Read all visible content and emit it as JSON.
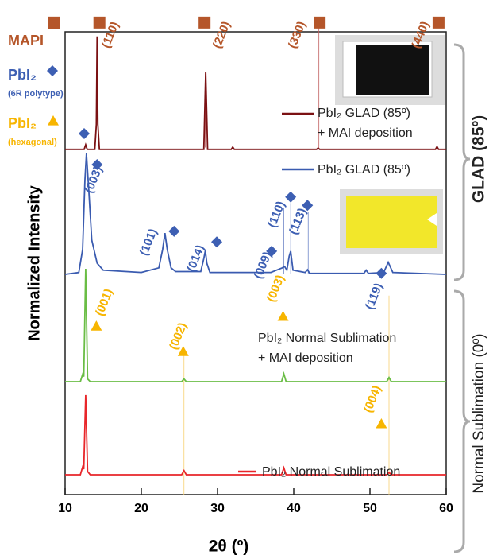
{
  "chart_data": {
    "type": "line",
    "x_label": "2θ (º)",
    "y_label": "Normalized Intensity",
    "xlim": [
      10,
      60
    ],
    "xticks": [
      10,
      20,
      30,
      40,
      50,
      60
    ],
    "ylim": [
      0,
      100
    ],
    "series": [
      {
        "name": "PbI₂ GLAD (85º)\n+ MAI deposition",
        "color": "#7b1113",
        "x": [
          10,
          12.5,
          12.7,
          12.9,
          13.9,
          14.1,
          14.2,
          14.3,
          14.5,
          28.2,
          28.45,
          28.7,
          31.8,
          32,
          32.2,
          43.0,
          43.2,
          43.4,
          58.6,
          58.8,
          59,
          60
        ],
        "values": [
          74.6,
          74.6,
          75.6,
          74.6,
          74.6,
          80,
          99,
          80,
          74.6,
          74.6,
          91.4,
          74.6,
          74.6,
          75.1,
          74.6,
          74.6,
          74.9,
          74.6,
          74.6,
          75.2,
          74.6,
          74.6
        ]
      },
      {
        "name": "PbI₂ GLAD (85º)",
        "color": "#3a5bb0",
        "x": [
          10,
          11.8,
          12.3,
          12.6,
          12.8,
          13.1,
          13.5,
          14.2,
          15,
          20,
          22.3,
          22.8,
          23.1,
          23.4,
          23.9,
          24.5,
          27.8,
          28.2,
          28.4,
          28.6,
          29,
          37,
          38.5,
          38.8,
          39.1,
          39.4,
          39.6,
          39.9,
          41.5,
          41.8,
          42.1,
          49.2,
          49.5,
          49.8,
          51.8,
          52.4,
          53,
          60
        ],
        "values": [
          47.6,
          48,
          53,
          68,
          73.7,
          66,
          55,
          50,
          48.5,
          48,
          49,
          53,
          56.5,
          53,
          49,
          48.2,
          48.2,
          51,
          52.7,
          50,
          48,
          48,
          49,
          49.3,
          48.5,
          51.5,
          52.6,
          48.5,
          48,
          48.6,
          47.8,
          47.8,
          48.5,
          47.8,
          48,
          50.2,
          48,
          47.6
        ]
      },
      {
        "name": "PbI₂ Normal Sublimation\n+ MAI deposition",
        "color": "#6abd45",
        "x": [
          10,
          12.0,
          12.3,
          12.45,
          12.7,
          12.95,
          13.3,
          25.3,
          25.6,
          25.9,
          38.4,
          38.7,
          39.0,
          52.2,
          52.5,
          52.8,
          60
        ],
        "values": [
          24.4,
          24.4,
          26,
          25.5,
          48.8,
          25,
          24.4,
          24.4,
          25,
          24.4,
          24.4,
          26.1,
          24.4,
          24.4,
          25.3,
          24.4,
          24.4
        ]
      },
      {
        "name": "PbI₂ Normal Sublimation",
        "color": "#e8262a",
        "x": [
          10,
          12.0,
          12.3,
          12.45,
          12.7,
          12.95,
          13.3,
          25.3,
          25.6,
          25.9,
          38.4,
          38.7,
          39.0,
          52.2,
          52.5,
          52.8,
          60
        ],
        "values": [
          4.3,
          4.3,
          6,
          5.5,
          21.5,
          5,
          4.3,
          4.3,
          5.2,
          4.3,
          4.3,
          5.8,
          4.3,
          4.3,
          4.8,
          4.3,
          4.3
        ]
      }
    ],
    "reference_lines": [
      {
        "x": 28.4,
        "from": 75,
        "to": 91,
        "color": "#c06060"
      },
      {
        "x": 43.3,
        "from": 75,
        "to": 101,
        "color": "#c06060"
      },
      {
        "x": 38.7,
        "from": 47.6,
        "to": 62,
        "color": "#6f87c8"
      },
      {
        "x": 39.6,
        "from": 47.6,
        "to": 63,
        "color": "#6f87c8"
      },
      {
        "x": 41.9,
        "from": 47.6,
        "to": 61,
        "color": "#6f87c8"
      },
      {
        "x": 25.6,
        "from": 0,
        "to": 30,
        "color": "#f7d070"
      },
      {
        "x": 38.6,
        "from": 0,
        "to": 38,
        "color": "#f7d070"
      },
      {
        "x": 52.5,
        "from": 0,
        "to": 43,
        "color": "#f7d070"
      }
    ],
    "markers": [
      {
        "shape": "square",
        "x": 8.5,
        "y": 102,
        "color": "#b5562a"
      },
      {
        "shape": "square",
        "x": 14.5,
        "y": 102,
        "color": "#b5562a"
      },
      {
        "shape": "square",
        "x": 28.3,
        "y": 102,
        "color": "#b5562a"
      },
      {
        "shape": "square",
        "x": 43.4,
        "y": 102,
        "color": "#b5562a"
      },
      {
        "shape": "square",
        "x": 59.0,
        "y": 102,
        "color": "#b5562a"
      },
      {
        "shape": "diamond",
        "x": 12.5,
        "y": 78,
        "color": "#3d5fb3"
      },
      {
        "shape": "diamond",
        "x": 14.2,
        "y": 71.3,
        "color": "#3d5fb3"
      },
      {
        "shape": "diamond",
        "x": 24.3,
        "y": 56.9,
        "color": "#3d5fb3"
      },
      {
        "shape": "diamond",
        "x": 29.9,
        "y": 54.6,
        "color": "#3d5fb3"
      },
      {
        "shape": "diamond",
        "x": 37.1,
        "y": 52.6,
        "color": "#3d5fb3"
      },
      {
        "shape": "diamond",
        "x": 39.6,
        "y": 64.3,
        "color": "#3d5fb3"
      },
      {
        "shape": "diamond",
        "x": 41.8,
        "y": 62.5,
        "color": "#3d5fb3"
      },
      {
        "shape": "diamond",
        "x": 51.5,
        "y": 47.8,
        "color": "#3d5fb3"
      },
      {
        "shape": "triangle",
        "x": 14.1,
        "y": 36.4,
        "color": "#f7b500"
      },
      {
        "shape": "triangle",
        "x": 25.5,
        "y": 30.9,
        "color": "#f7b500"
      },
      {
        "shape": "triangle",
        "x": 38.6,
        "y": 38.5,
        "color": "#f7b500"
      },
      {
        "shape": "triangle",
        "x": 51.5,
        "y": 15.3,
        "color": "#f7b500"
      }
    ],
    "labels": [
      {
        "text": "(110)",
        "x": 16,
        "y": 99.3,
        "color": "#b5562a"
      },
      {
        "text": "(220)",
        "x": 30.6,
        "y": 99.3,
        "color": "#b5562a"
      },
      {
        "text": "(330)",
        "x": 40.5,
        "y": 99.3,
        "color": "#b5562a"
      },
      {
        "text": "(440)",
        "x": 56.7,
        "y": 99.3,
        "color": "#b5562a"
      },
      {
        "text": "(003)",
        "x": 13.8,
        "y": 68,
        "color": "#3d5fb3"
      },
      {
        "text": "(101)",
        "x": 21,
        "y": 54.5,
        "color": "#3d5fb3"
      },
      {
        "text": "(014)",
        "x": 27.2,
        "y": 51,
        "color": "#3d5fb3"
      },
      {
        "text": "(009)",
        "x": 36,
        "y": 49.5,
        "color": "#3d5fb3"
      },
      {
        "text": "(110)",
        "x": 37.8,
        "y": 60.5,
        "color": "#3d5fb3"
      },
      {
        "text": "(113)",
        "x": 40.6,
        "y": 59,
        "color": "#3d5fb3"
      },
      {
        "text": "(119)",
        "x": 50.6,
        "y": 42.8,
        "color": "#3d5fb3"
      },
      {
        "text": "(001)",
        "x": 15.2,
        "y": 41.5,
        "color": "#f7b500"
      },
      {
        "text": "(002)",
        "x": 24.9,
        "y": 34.2,
        "color": "#f7b500"
      },
      {
        "text": "(003)",
        "x": 37.7,
        "y": 44.5,
        "color": "#f7b500"
      },
      {
        "text": "(004)",
        "x": 50.4,
        "y": 20.6,
        "color": "#f7b500"
      }
    ],
    "marker_legend": [
      {
        "label": "MAPI",
        "shape": "square",
        "color": "#b5562a"
      },
      {
        "label": "PbI₂",
        "sublabel": "(6R polytype)",
        "shape": "diamond",
        "color": "#3d5fb3"
      },
      {
        "label": "PbI₂",
        "sublabel": "(hexagonal)",
        "shape": "triangle",
        "color": "#f7b500"
      }
    ],
    "groups": [
      {
        "label": "GLAD (85º)",
        "bold": true
      },
      {
        "label": "Normal Sublimation (0º)",
        "bold": false
      }
    ]
  }
}
